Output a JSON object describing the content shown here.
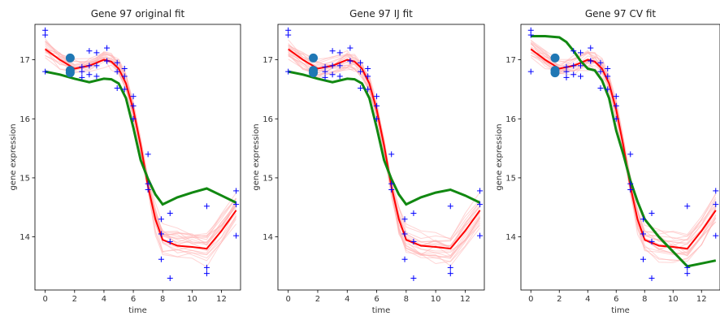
{
  "chart_data": [
    {
      "type": "line",
      "title": "Gene 97 original fit",
      "xlabel": "time",
      "ylabel": "gene expression",
      "xlim": [
        -0.7,
        13.3
      ],
      "ylim": [
        13.1,
        17.6
      ],
      "xticks": [
        0,
        2,
        4,
        6,
        8,
        10,
        12
      ],
      "yticks": [
        14,
        15,
        16,
        17
      ],
      "grid": false,
      "colors": {
        "samples": "#ffb0b0",
        "mean": "#ff0000",
        "fit": "#118811",
        "points": "#0000ff",
        "markers": "#1f77b4"
      },
      "observations": [
        {
          "x": 0,
          "y": 17.5
        },
        {
          "x": 0,
          "y": 17.42
        },
        {
          "x": 0,
          "y": 16.8
        },
        {
          "x": 2.5,
          "y": 16.88
        },
        {
          "x": 2.5,
          "y": 16.8
        },
        {
          "x": 2.5,
          "y": 16.7
        },
        {
          "x": 3,
          "y": 17.15
        },
        {
          "x": 3,
          "y": 16.9
        },
        {
          "x": 3,
          "y": 16.75
        },
        {
          "x": 3.5,
          "y": 17.12
        },
        {
          "x": 3.5,
          "y": 16.9
        },
        {
          "x": 3.5,
          "y": 16.72
        },
        {
          "x": 4.2,
          "y": 17.2
        },
        {
          "x": 4.2,
          "y": 16.98
        },
        {
          "x": 4.2,
          "y": 16.98
        },
        {
          "x": 4.9,
          "y": 16.95
        },
        {
          "x": 4.9,
          "y": 16.8
        },
        {
          "x": 4.9,
          "y": 16.52
        },
        {
          "x": 5.4,
          "y": 16.85
        },
        {
          "x": 5.4,
          "y": 16.72
        },
        {
          "x": 5.4,
          "y": 16.5
        },
        {
          "x": 6,
          "y": 16.38
        },
        {
          "x": 6,
          "y": 16.22
        },
        {
          "x": 6,
          "y": 16.0
        },
        {
          "x": 7,
          "y": 15.4
        },
        {
          "x": 7,
          "y": 14.9
        },
        {
          "x": 7,
          "y": 14.8
        },
        {
          "x": 7.9,
          "y": 14.3
        },
        {
          "x": 7.9,
          "y": 14.05
        },
        {
          "x": 7.9,
          "y": 13.62
        },
        {
          "x": 8.5,
          "y": 14.4
        },
        {
          "x": 8.5,
          "y": 13.92
        },
        {
          "x": 8.5,
          "y": 13.3
        },
        {
          "x": 11,
          "y": 14.52
        },
        {
          "x": 11,
          "y": 13.48
        },
        {
          "x": 11,
          "y": 13.38
        },
        {
          "x": 13,
          "y": 14.78
        },
        {
          "x": 13,
          "y": 14.55
        },
        {
          "x": 13,
          "y": 14.02
        }
      ],
      "markers": [
        {
          "x": 1.7,
          "y": 17.03
        },
        {
          "x": 1.7,
          "y": 16.82
        },
        {
          "x": 1.7,
          "y": 16.78
        }
      ],
      "mean_curve": {
        "x": [
          0,
          1,
          2,
          3,
          4,
          4.5,
          5,
          5.5,
          6,
          6.5,
          7,
          7.5,
          8,
          9,
          10,
          11,
          12,
          13
        ],
        "y": [
          17.18,
          17.0,
          16.85,
          16.9,
          17.0,
          16.97,
          16.85,
          16.6,
          16.15,
          15.55,
          14.85,
          14.3,
          13.95,
          13.85,
          13.83,
          13.8,
          14.1,
          14.45
        ]
      },
      "fit_curve": {
        "x": [
          0,
          1,
          2,
          3,
          4,
          4.5,
          5,
          5.5,
          6,
          6.5,
          7,
          7.5,
          8,
          9,
          10,
          11,
          12,
          13
        ],
        "y": [
          16.8,
          16.75,
          16.68,
          16.62,
          16.68,
          16.67,
          16.6,
          16.35,
          15.85,
          15.3,
          14.98,
          14.72,
          14.55,
          14.67,
          14.75,
          14.82,
          14.7,
          14.58
        ]
      },
      "n_samples": 20
    },
    {
      "type": "line",
      "title": "Gene 97 IJ fit",
      "xlabel": "time",
      "ylabel": "gene expression",
      "xlim": [
        -0.7,
        13.3
      ],
      "ylim": [
        13.1,
        17.6
      ],
      "xticks": [
        0,
        2,
        4,
        6,
        8,
        10,
        12
      ],
      "yticks": [
        14,
        15,
        16,
        17
      ],
      "grid": false,
      "colors": {
        "samples": "#ffb0b0",
        "mean": "#ff0000",
        "fit": "#118811",
        "points": "#0000ff",
        "markers": "#1f77b4"
      },
      "observations": [
        {
          "x": 0,
          "y": 17.5
        },
        {
          "x": 0,
          "y": 17.42
        },
        {
          "x": 0,
          "y": 16.8
        },
        {
          "x": 2.5,
          "y": 16.88
        },
        {
          "x": 2.5,
          "y": 16.8
        },
        {
          "x": 2.5,
          "y": 16.7
        },
        {
          "x": 3,
          "y": 17.15
        },
        {
          "x": 3,
          "y": 16.9
        },
        {
          "x": 3,
          "y": 16.75
        },
        {
          "x": 3.5,
          "y": 17.12
        },
        {
          "x": 3.5,
          "y": 16.9
        },
        {
          "x": 3.5,
          "y": 16.72
        },
        {
          "x": 4.2,
          "y": 17.2
        },
        {
          "x": 4.2,
          "y": 16.98
        },
        {
          "x": 4.2,
          "y": 16.98
        },
        {
          "x": 4.9,
          "y": 16.95
        },
        {
          "x": 4.9,
          "y": 16.8
        },
        {
          "x": 4.9,
          "y": 16.52
        },
        {
          "x": 5.4,
          "y": 16.85
        },
        {
          "x": 5.4,
          "y": 16.72
        },
        {
          "x": 5.4,
          "y": 16.5
        },
        {
          "x": 6,
          "y": 16.38
        },
        {
          "x": 6,
          "y": 16.22
        },
        {
          "x": 6,
          "y": 16.0
        },
        {
          "x": 7,
          "y": 15.4
        },
        {
          "x": 7,
          "y": 14.9
        },
        {
          "x": 7,
          "y": 14.8
        },
        {
          "x": 7.9,
          "y": 14.3
        },
        {
          "x": 7.9,
          "y": 14.05
        },
        {
          "x": 7.9,
          "y": 13.62
        },
        {
          "x": 8.5,
          "y": 14.4
        },
        {
          "x": 8.5,
          "y": 13.92
        },
        {
          "x": 8.5,
          "y": 13.3
        },
        {
          "x": 11,
          "y": 14.52
        },
        {
          "x": 11,
          "y": 13.48
        },
        {
          "x": 11,
          "y": 13.38
        },
        {
          "x": 13,
          "y": 14.78
        },
        {
          "x": 13,
          "y": 14.55
        },
        {
          "x": 13,
          "y": 14.02
        }
      ],
      "markers": [
        {
          "x": 1.7,
          "y": 17.03
        },
        {
          "x": 1.7,
          "y": 16.82
        },
        {
          "x": 1.7,
          "y": 16.78
        }
      ],
      "mean_curve": {
        "x": [
          0,
          1,
          2,
          3,
          4,
          4.5,
          5,
          5.5,
          6,
          6.5,
          7,
          7.5,
          8,
          9,
          10,
          11,
          12,
          13
        ],
        "y": [
          17.18,
          17.0,
          16.85,
          16.9,
          17.0,
          16.97,
          16.85,
          16.6,
          16.15,
          15.55,
          14.85,
          14.3,
          13.95,
          13.85,
          13.83,
          13.8,
          14.1,
          14.45
        ]
      },
      "fit_curve": {
        "x": [
          0,
          1,
          2,
          3,
          4,
          4.5,
          5,
          5.5,
          6,
          6.5,
          7,
          7.5,
          8,
          9,
          10,
          11,
          12,
          13
        ],
        "y": [
          16.8,
          16.75,
          16.68,
          16.62,
          16.68,
          16.67,
          16.6,
          16.35,
          15.85,
          15.3,
          14.98,
          14.72,
          14.55,
          14.67,
          14.75,
          14.8,
          14.7,
          14.58
        ]
      },
      "n_samples": 20
    },
    {
      "type": "line",
      "title": "Gene 97 CV fit",
      "xlabel": "time",
      "ylabel": "gene expression",
      "xlim": [
        -0.7,
        13.3
      ],
      "ylim": [
        13.1,
        17.6
      ],
      "xticks": [
        0,
        2,
        4,
        6,
        8,
        10,
        12
      ],
      "yticks": [
        14,
        15,
        16,
        17
      ],
      "grid": false,
      "colors": {
        "samples": "#ffb0b0",
        "mean": "#ff0000",
        "fit": "#118811",
        "points": "#0000ff",
        "markers": "#1f77b4"
      },
      "observations": [
        {
          "x": 0,
          "y": 17.5
        },
        {
          "x": 0,
          "y": 17.42
        },
        {
          "x": 0,
          "y": 16.8
        },
        {
          "x": 2.5,
          "y": 16.88
        },
        {
          "x": 2.5,
          "y": 16.8
        },
        {
          "x": 2.5,
          "y": 16.7
        },
        {
          "x": 3,
          "y": 17.15
        },
        {
          "x": 3,
          "y": 16.9
        },
        {
          "x": 3,
          "y": 16.75
        },
        {
          "x": 3.5,
          "y": 17.12
        },
        {
          "x": 3.5,
          "y": 16.9
        },
        {
          "x": 3.5,
          "y": 16.72
        },
        {
          "x": 4.2,
          "y": 17.2
        },
        {
          "x": 4.2,
          "y": 16.98
        },
        {
          "x": 4.2,
          "y": 16.98
        },
        {
          "x": 4.9,
          "y": 16.95
        },
        {
          "x": 4.9,
          "y": 16.8
        },
        {
          "x": 4.9,
          "y": 16.52
        },
        {
          "x": 5.4,
          "y": 16.85
        },
        {
          "x": 5.4,
          "y": 16.72
        },
        {
          "x": 5.4,
          "y": 16.5
        },
        {
          "x": 6,
          "y": 16.38
        },
        {
          "x": 6,
          "y": 16.22
        },
        {
          "x": 6,
          "y": 16.0
        },
        {
          "x": 7,
          "y": 15.4
        },
        {
          "x": 7,
          "y": 14.9
        },
        {
          "x": 7,
          "y": 14.8
        },
        {
          "x": 7.9,
          "y": 14.3
        },
        {
          "x": 7.9,
          "y": 14.05
        },
        {
          "x": 7.9,
          "y": 13.62
        },
        {
          "x": 8.5,
          "y": 14.4
        },
        {
          "x": 8.5,
          "y": 13.92
        },
        {
          "x": 8.5,
          "y": 13.3
        },
        {
          "x": 11,
          "y": 14.52
        },
        {
          "x": 11,
          "y": 13.48
        },
        {
          "x": 11,
          "y": 13.38
        },
        {
          "x": 13,
          "y": 14.78
        },
        {
          "x": 13,
          "y": 14.55
        },
        {
          "x": 13,
          "y": 14.02
        }
      ],
      "markers": [
        {
          "x": 1.7,
          "y": 17.03
        },
        {
          "x": 1.7,
          "y": 16.82
        },
        {
          "x": 1.7,
          "y": 16.78
        }
      ],
      "mean_curve": {
        "x": [
          0,
          1,
          2,
          3,
          4,
          4.5,
          5,
          5.5,
          6,
          6.5,
          7,
          7.5,
          8,
          9,
          10,
          11,
          12,
          13
        ],
        "y": [
          17.18,
          17.0,
          16.85,
          16.9,
          17.0,
          16.97,
          16.85,
          16.6,
          16.15,
          15.55,
          14.85,
          14.3,
          13.95,
          13.85,
          13.83,
          13.8,
          14.1,
          14.45
        ]
      },
      "fit_curve": {
        "x": [
          0,
          1,
          2,
          2.5,
          3,
          3.5,
          4,
          4.5,
          5,
          5.5,
          6,
          6.5,
          7,
          7.5,
          8,
          9,
          10,
          11,
          12,
          13
        ],
        "y": [
          17.4,
          17.4,
          17.38,
          17.3,
          17.15,
          16.98,
          16.85,
          16.82,
          16.65,
          16.35,
          15.8,
          15.4,
          14.95,
          14.6,
          14.3,
          14.0,
          13.75,
          13.5,
          13.55,
          13.6
        ]
      },
      "n_samples": 20
    }
  ]
}
